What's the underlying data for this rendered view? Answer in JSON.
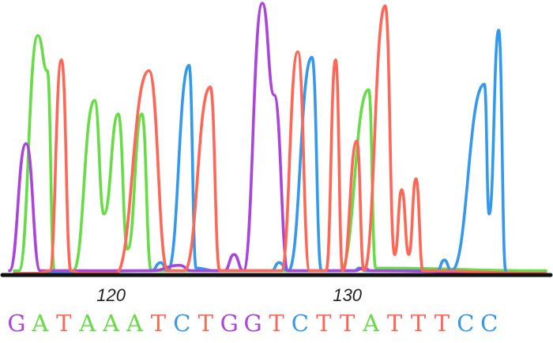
{
  "chart_data": {
    "type": "line",
    "title": "",
    "xlabel": "",
    "ylabel": "",
    "grid": false,
    "legend": "none",
    "base_colors": {
      "A": "#66dd44",
      "C": "#3399ee",
      "G": "#aa44dd",
      "T": "#ff6655"
    },
    "x_range": [
      115.5,
      138.5
    ],
    "y_range": [
      0,
      100
    ],
    "position_ticks": [
      120,
      130
    ],
    "position_tick_labels": [
      "120",
      "130"
    ],
    "basecalls": [
      {
        "pos": 116,
        "base": "G",
        "peak": 48
      },
      {
        "pos": 117,
        "base": "A",
        "peak": 82
      },
      {
        "pos": 118,
        "base": "T",
        "peak": 79
      },
      {
        "pos": 119,
        "base": "A",
        "peak": 64
      },
      {
        "pos": 120,
        "base": "A",
        "peak": 59
      },
      {
        "pos": 121,
        "base": "A",
        "peak": 59
      },
      {
        "pos": 122,
        "base": "T",
        "peak": 75
      },
      {
        "pos": 123,
        "base": "C",
        "peak": 77
      },
      {
        "pos": 124,
        "base": "T",
        "peak": 69
      },
      {
        "pos": 125,
        "base": "G",
        "peak": 100
      },
      {
        "pos": 126,
        "base": "G",
        "peak": 68
      },
      {
        "pos": 127,
        "base": "T",
        "peak": 82
      },
      {
        "pos": 128,
        "base": "C",
        "peak": 80
      },
      {
        "pos": 129,
        "base": "T",
        "peak": 79
      },
      {
        "pos": 130,
        "base": "T",
        "peak": 49
      },
      {
        "pos": 131,
        "base": "A",
        "peak": 68
      },
      {
        "pos": 132,
        "base": "T",
        "peak": 99
      },
      {
        "pos": 133,
        "base": "T",
        "peak": 31
      },
      {
        "pos": 134,
        "base": "T",
        "peak": 35
      },
      {
        "pos": 135,
        "base": "C",
        "peak": 70
      },
      {
        "pos": 136,
        "base": "C",
        "peak": 90
      }
    ],
    "series": [
      {
        "name": "A",
        "points": [
          [
            115.9,
            1
          ],
          [
            116.1,
            1
          ],
          [
            116.9,
            88
          ],
          [
            117.3,
            75
          ],
          [
            117.6,
            1
          ],
          [
            118.4,
            1
          ],
          [
            119.3,
            64
          ],
          [
            119.7,
            22
          ],
          [
            120.3,
            59
          ],
          [
            120.7,
            9
          ],
          [
            121.3,
            59
          ],
          [
            121.7,
            1
          ],
          [
            126.8,
            1
          ],
          [
            129.7,
            1
          ],
          [
            130.9,
            68
          ],
          [
            131.2,
            2
          ],
          [
            138.4,
            1
          ]
        ]
      },
      {
        "name": "C",
        "points": [
          [
            115.9,
            0
          ],
          [
            121.7,
            1
          ],
          [
            122.1,
            4
          ],
          [
            122.4,
            1
          ],
          [
            123.3,
            77
          ],
          [
            123.6,
            2
          ],
          [
            124.4,
            1
          ],
          [
            126.8,
            1
          ],
          [
            127.1,
            4
          ],
          [
            127.5,
            1
          ],
          [
            128.5,
            80
          ],
          [
            128.9,
            1
          ],
          [
            130.3,
            1
          ],
          [
            130.5,
            2
          ],
          [
            130.8,
            1
          ],
          [
            133.8,
            1
          ],
          [
            134.1,
            5
          ],
          [
            134.4,
            1
          ],
          [
            135.8,
            70
          ],
          [
            136.0,
            22
          ],
          [
            136.4,
            90
          ],
          [
            136.7,
            1
          ]
        ]
      },
      {
        "name": "G",
        "points": [
          [
            115.7,
            1
          ],
          [
            116.4,
            48
          ],
          [
            117.0,
            1
          ],
          [
            121.7,
            1
          ],
          [
            122.9,
            3
          ],
          [
            123.4,
            1
          ],
          [
            124.8,
            1
          ],
          [
            125.2,
            7
          ],
          [
            125.6,
            1
          ],
          [
            126.4,
            100
          ],
          [
            126.9,
            66
          ],
          [
            127.5,
            1
          ],
          [
            130.3,
            1
          ],
          [
            130.7,
            2
          ],
          [
            131.0,
            1
          ],
          [
            138.4,
            0
          ]
        ]
      },
      {
        "name": "T",
        "points": [
          [
            115.9,
            0
          ],
          [
            116.9,
            0
          ],
          [
            117.4,
            1
          ],
          [
            117.9,
            79
          ],
          [
            118.3,
            1
          ],
          [
            118.7,
            0
          ],
          [
            120.2,
            0
          ],
          [
            121.6,
            75
          ],
          [
            122.4,
            1
          ],
          [
            123.1,
            1
          ],
          [
            124.2,
            69
          ],
          [
            124.6,
            1
          ],
          [
            127.2,
            1
          ],
          [
            127.9,
            82
          ],
          [
            128.4,
            1
          ],
          [
            129.1,
            1
          ],
          [
            129.5,
            79
          ],
          [
            129.8,
            1
          ],
          [
            130.4,
            49
          ],
          [
            130.7,
            1
          ],
          [
            131.6,
            99
          ],
          [
            132.0,
            7
          ],
          [
            132.3,
            31
          ],
          [
            132.6,
            7
          ],
          [
            132.9,
            35
          ],
          [
            133.2,
            1
          ],
          [
            138.4,
            0
          ]
        ]
      }
    ]
  }
}
